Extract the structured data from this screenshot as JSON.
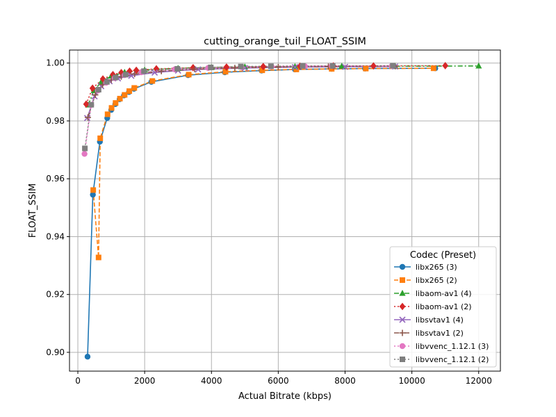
{
  "chart_data": {
    "type": "line",
    "title": "cutting_orange_tuil_FLOAT_SSIM",
    "xlabel": "Actual Bitrate (kbps)",
    "ylabel": "FLOAT_SSIM",
    "xlim": [
      -250,
      12650
    ],
    "ylim": [
      0.8935,
      1.0045
    ],
    "xticks": [
      0,
      2000,
      4000,
      6000,
      8000,
      10000,
      12000
    ],
    "yticks": [
      0.9,
      0.92,
      0.94,
      0.96,
      0.98,
      1.0
    ],
    "xtick_labels": [
      "0",
      "2000",
      "4000",
      "6000",
      "8000",
      "10000",
      "12000"
    ],
    "ytick_labels": [
      "0.90",
      "0.92",
      "0.94",
      "0.96",
      "0.98",
      "1.00"
    ],
    "grid": true,
    "legend_title": "Codec (Preset)",
    "legend_position": "lower right",
    "series": [
      {
        "name": "libx265 (3)",
        "color": "#1f77b4",
        "marker": "circle",
        "dash": "solid",
        "points": [
          [
            290,
            0.8985
          ],
          [
            450,
            0.9545
          ],
          [
            660,
            0.9728
          ],
          [
            880,
            0.981
          ],
          [
            1000,
            0.9838
          ],
          [
            1120,
            0.9858
          ],
          [
            1250,
            0.9875
          ],
          [
            1380,
            0.9888
          ],
          [
            1530,
            0.99
          ],
          [
            1680,
            0.9911
          ],
          [
            2200,
            0.9935
          ],
          [
            3300,
            0.9958
          ],
          [
            4400,
            0.9968
          ],
          [
            5500,
            0.9974
          ],
          [
            6500,
            0.9978
          ],
          [
            7600,
            0.998
          ],
          [
            8600,
            0.9981
          ],
          [
            10700,
            0.9982
          ]
        ]
      },
      {
        "name": "libx265 (2)",
        "color": "#ff7f0e",
        "marker": "square",
        "dash": "dashed",
        "points": [
          [
            460,
            0.9561
          ],
          [
            620,
            0.9328
          ],
          [
            670,
            0.974
          ],
          [
            890,
            0.9823
          ],
          [
            1010,
            0.9845
          ],
          [
            1130,
            0.9862
          ],
          [
            1260,
            0.9877
          ],
          [
            1400,
            0.989
          ],
          [
            1540,
            0.9903
          ],
          [
            1690,
            0.9914
          ],
          [
            2230,
            0.9938
          ],
          [
            3320,
            0.996
          ],
          [
            4420,
            0.997
          ],
          [
            5520,
            0.9975
          ],
          [
            6540,
            0.9978
          ],
          [
            7600,
            0.998
          ],
          [
            8620,
            0.9981
          ],
          [
            10650,
            0.9982
          ]
        ]
      },
      {
        "name": "libaom-av1 (4)",
        "color": "#2ca02c",
        "marker": "triangle",
        "dash": "dashdot",
        "points": [
          [
            310,
            0.9855
          ],
          [
            480,
            0.9905
          ],
          [
            700,
            0.9935
          ],
          [
            1000,
            0.9955
          ],
          [
            1400,
            0.9968
          ],
          [
            2000,
            0.9976
          ],
          [
            3000,
            0.9982
          ],
          [
            4000,
            0.9985
          ],
          [
            5000,
            0.9987
          ],
          [
            6500,
            0.9988
          ],
          [
            7900,
            0.9989
          ],
          [
            9500,
            0.9989
          ],
          [
            12000,
            0.999
          ]
        ]
      },
      {
        "name": "libaom-av1 (2)",
        "color": "#d62728",
        "marker": "diamond",
        "dash": "dotted",
        "points": [
          [
            250,
            0.9858
          ],
          [
            440,
            0.9913
          ],
          [
            750,
            0.9945
          ],
          [
            1050,
            0.996
          ],
          [
            1300,
            0.9967
          ],
          [
            1550,
            0.9972
          ],
          [
            1750,
            0.9975
          ],
          [
            2350,
            0.998
          ],
          [
            3450,
            0.9984
          ],
          [
            4450,
            0.9986
          ],
          [
            5550,
            0.9988
          ],
          [
            6650,
            0.9989
          ],
          [
            7650,
            0.999
          ],
          [
            8850,
            0.999
          ],
          [
            11000,
            0.9991
          ]
        ]
      },
      {
        "name": "libsvtav1 (4)",
        "color": "#9467bd",
        "marker": "x",
        "dash": "solid",
        "points": [
          [
            280,
            0.981
          ],
          [
            500,
            0.9885
          ],
          [
            700,
            0.992
          ],
          [
            950,
            0.9937
          ],
          [
            1200,
            0.9947
          ],
          [
            1600,
            0.9956
          ],
          [
            2300,
            0.9967
          ],
          [
            3000,
            0.9974
          ],
          [
            3600,
            0.9978
          ],
          [
            5000,
            0.9983
          ],
          [
            6500,
            0.9986
          ],
          [
            8000,
            0.9987
          ],
          [
            9500,
            0.9988
          ]
        ]
      },
      {
        "name": "libsvtav1 (2)",
        "color": "#8c564b",
        "marker": "plus",
        "dash": "dashdot",
        "points": [
          [
            300,
            0.9812
          ],
          [
            520,
            0.989
          ],
          [
            740,
            0.9925
          ],
          [
            1000,
            0.9942
          ],
          [
            1300,
            0.9953
          ],
          [
            1700,
            0.9962
          ],
          [
            2500,
            0.9972
          ],
          [
            3500,
            0.9979
          ],
          [
            4700,
            0.9983
          ],
          [
            6000,
            0.9986
          ],
          [
            7500,
            0.9988
          ],
          [
            9500,
            0.9989
          ]
        ]
      },
      {
        "name": "libvvenc_1.12.1 (3)",
        "color": "#e377c2",
        "marker": "circle",
        "dash": "dotted",
        "points": [
          [
            200,
            0.9686
          ],
          [
            400,
            0.9855
          ],
          [
            600,
            0.9905
          ],
          [
            850,
            0.9932
          ],
          [
            1100,
            0.9948
          ],
          [
            1400,
            0.9958
          ],
          [
            1900,
            0.9968
          ],
          [
            2900,
            0.9978
          ],
          [
            3900,
            0.9983
          ],
          [
            4900,
            0.9986
          ],
          [
            5800,
            0.9988
          ],
          [
            6800,
            0.9989
          ],
          [
            7600,
            0.999
          ],
          [
            9400,
            0.999
          ]
        ]
      },
      {
        "name": "libvvenc_1.12.1 (2)",
        "color": "#7f7f7f",
        "marker": "square",
        "dash": "dotted",
        "points": [
          [
            210,
            0.9705
          ],
          [
            400,
            0.9856
          ],
          [
            620,
            0.9908
          ],
          [
            870,
            0.9935
          ],
          [
            1130,
            0.995
          ],
          [
            1430,
            0.996
          ],
          [
            1980,
            0.9972
          ],
          [
            2980,
            0.998
          ],
          [
            3980,
            0.9985
          ],
          [
            4880,
            0.9988
          ],
          [
            5780,
            0.9989
          ],
          [
            6730,
            0.999
          ],
          [
            7630,
            0.999
          ],
          [
            9430,
            0.9991
          ]
        ]
      }
    ]
  }
}
